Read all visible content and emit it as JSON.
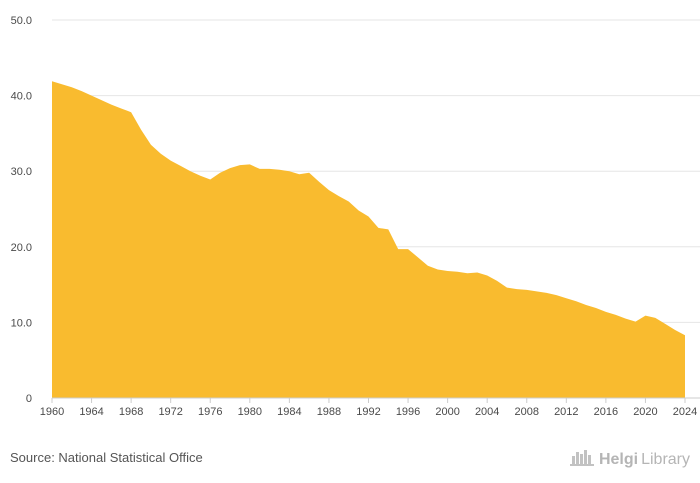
{
  "chart_data": {
    "type": "area",
    "title": "",
    "xlabel": "",
    "ylabel": "",
    "ylim": [
      0,
      50
    ],
    "xlim": [
      1960,
      2024
    ],
    "y_ticks": [
      "0",
      "10.0",
      "20.0",
      "30.0",
      "40.0",
      "50.0"
    ],
    "x_ticks": [
      "1960",
      "1964",
      "1968",
      "1972",
      "1976",
      "1980",
      "1984",
      "1988",
      "1992",
      "1996",
      "2000",
      "2004",
      "2008",
      "2012",
      "2016",
      "2020",
      "2024"
    ],
    "grid": "horizontal",
    "color": "#f9bb2f",
    "x": [
      1960,
      1961,
      1962,
      1963,
      1964,
      1965,
      1966,
      1967,
      1968,
      1969,
      1970,
      1971,
      1972,
      1973,
      1974,
      1975,
      1976,
      1977,
      1978,
      1979,
      1980,
      1981,
      1982,
      1983,
      1984,
      1985,
      1986,
      1987,
      1988,
      1989,
      1990,
      1991,
      1992,
      1993,
      1994,
      1995,
      1996,
      1997,
      1998,
      1999,
      2000,
      2001,
      2002,
      2003,
      2004,
      2005,
      2006,
      2007,
      2008,
      2009,
      2010,
      2011,
      2012,
      2013,
      2014,
      2015,
      2016,
      2017,
      2018,
      2019,
      2020,
      2021,
      2022,
      2023,
      2024
    ],
    "values": [
      41.9,
      41.5,
      41.1,
      40.6,
      40.0,
      39.4,
      38.8,
      38.3,
      37.8,
      35.5,
      33.5,
      32.3,
      31.4,
      30.7,
      30.0,
      29.4,
      28.9,
      29.8,
      30.4,
      30.8,
      30.9,
      30.3,
      30.3,
      30.2,
      30.0,
      29.6,
      29.8,
      28.6,
      27.5,
      26.7,
      26.0,
      24.8,
      24.0,
      22.5,
      22.3,
      19.7,
      19.7,
      18.6,
      17.5,
      17.0,
      16.8,
      16.7,
      16.5,
      16.6,
      16.2,
      15.5,
      14.6,
      14.4,
      14.3,
      14.1,
      13.9,
      13.6,
      13.2,
      12.8,
      12.3,
      11.9,
      11.4,
      11.0,
      10.5,
      10.1,
      10.9,
      10.6,
      9.8,
      9.0,
      8.3
    ]
  },
  "footer": {
    "source": "Source: National Statistical Office",
    "logo_bold": "Helgi",
    "logo_light": "Library"
  },
  "icons": {
    "logo_icon": "building-icon"
  }
}
